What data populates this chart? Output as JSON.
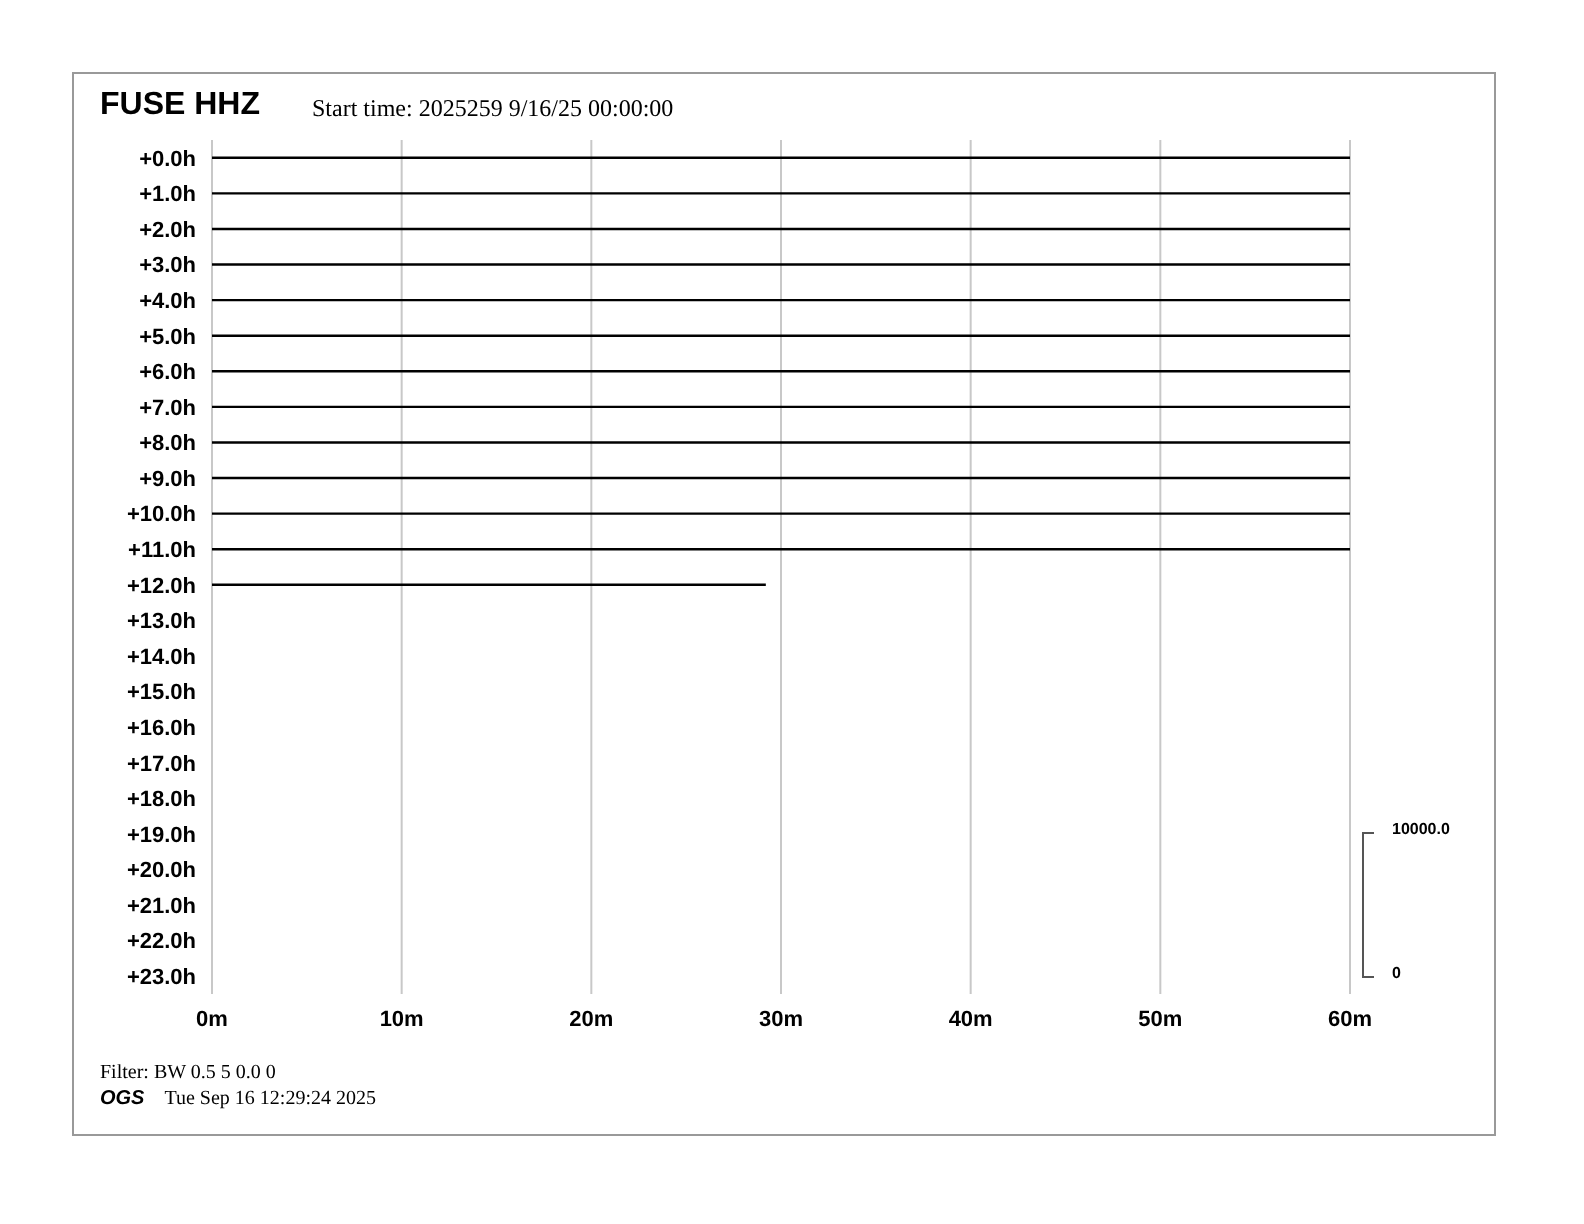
{
  "chart_data": {
    "type": "line",
    "title": "FUSE HHZ",
    "subtitle": "Start time: 2025259  9/16/25 00:00:00",
    "annotations": [
      "Filter: BW 0.5 5 0.0 0",
      "OGS",
      "Tue Sep 16 12:29:24 2025",
      "10000.0",
      "0"
    ],
    "xlim": [
      0,
      60
    ],
    "xticks": [
      {
        "value": 0,
        "label": "0m"
      },
      {
        "value": 10,
        "label": "10m"
      },
      {
        "value": 20,
        "label": "20m"
      },
      {
        "value": 30,
        "label": "30m"
      },
      {
        "value": 40,
        "label": "40m"
      },
      {
        "value": 50,
        "label": "50m"
      },
      {
        "value": 60,
        "label": "60m"
      }
    ],
    "ylim": [
      23.5,
      -0.5
    ],
    "yticks": [
      {
        "value": 0,
        "label": "+0.0h"
      },
      {
        "value": 1,
        "label": "+1.0h"
      },
      {
        "value": 2,
        "label": "+2.0h"
      },
      {
        "value": 3,
        "label": "+3.0h"
      },
      {
        "value": 4,
        "label": "+4.0h"
      },
      {
        "value": 5,
        "label": "+5.0h"
      },
      {
        "value": 6,
        "label": "+6.0h"
      },
      {
        "value": 7,
        "label": "+7.0h"
      },
      {
        "value": 8,
        "label": "+8.0h"
      },
      {
        "value": 9,
        "label": "+9.0h"
      },
      {
        "value": 10,
        "label": "+10.0h"
      },
      {
        "value": 11,
        "label": "+11.0h"
      },
      {
        "value": 12,
        "label": "+12.0h"
      },
      {
        "value": 13,
        "label": "+13.0h"
      },
      {
        "value": 14,
        "label": "+14.0h"
      },
      {
        "value": 15,
        "label": "+15.0h"
      },
      {
        "value": 16,
        "label": "+16.0h"
      },
      {
        "value": 17,
        "label": "+17.0h"
      },
      {
        "value": 18,
        "label": "+18.0h"
      },
      {
        "value": 19,
        "label": "+19.0h"
      },
      {
        "value": 20,
        "label": "+20.0h"
      },
      {
        "value": 21,
        "label": "+21.0h"
      },
      {
        "value": 22,
        "label": "+22.0h"
      },
      {
        "value": 23,
        "label": "+23.0h"
      }
    ],
    "grid": "x",
    "legend": false,
    "marker": "none",
    "line_style": "solid",
    "series": [
      {
        "color": "#000000",
        "x": [
          0,
          60
        ],
        "values": [
          0,
          0
        ]
      },
      {
        "color": "#000000",
        "x": [
          0,
          60
        ],
        "values": [
          1,
          1
        ]
      },
      {
        "color": "#000000",
        "x": [
          0,
          60
        ],
        "values": [
          2,
          2
        ]
      },
      {
        "color": "#000000",
        "x": [
          0,
          60
        ],
        "values": [
          3,
          3
        ]
      },
      {
        "color": "#000000",
        "x": [
          0,
          60
        ],
        "values": [
          4,
          4
        ]
      },
      {
        "color": "#000000",
        "x": [
          0,
          60
        ],
        "values": [
          5,
          5
        ]
      },
      {
        "color": "#000000",
        "x": [
          0,
          60
        ],
        "values": [
          6,
          6
        ]
      },
      {
        "color": "#000000",
        "x": [
          0,
          60
        ],
        "values": [
          7,
          7
        ]
      },
      {
        "color": "#000000",
        "x": [
          0,
          60
        ],
        "values": [
          8,
          8
        ]
      },
      {
        "color": "#000000",
        "x": [
          0,
          60
        ],
        "values": [
          9,
          9
        ]
      },
      {
        "color": "#000000",
        "x": [
          0,
          60
        ],
        "values": [
          10,
          10
        ]
      },
      {
        "color": "#000000",
        "x": [
          0,
          60
        ],
        "values": [
          11,
          11
        ]
      },
      {
        "color": "#000000",
        "x": [
          0,
          29.2
        ],
        "values": [
          12,
          12
        ]
      }
    ]
  }
}
